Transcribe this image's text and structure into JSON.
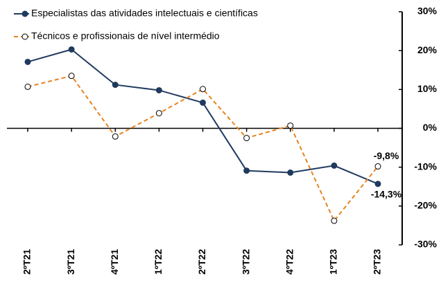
{
  "chart_data": {
    "type": "line",
    "categories": [
      "2ºT21",
      "3ºT21",
      "4ºT21",
      "1ºT22",
      "2ºT22",
      "3ºT22",
      "4ºT22",
      "1ºT23",
      "2ºT23"
    ],
    "series": [
      {
        "name": "Especialistas das atividades intelectuais e científicas",
        "color": "#1f3a5f",
        "dashed": false,
        "marker_fill": "#1f3a5f",
        "values": [
          17.1,
          20.3,
          11.2,
          9.8,
          6.6,
          -10.9,
          -11.4,
          -9.6,
          -14.3
        ],
        "value_labels": [
          null,
          null,
          null,
          null,
          null,
          null,
          null,
          null,
          "-14,3%"
        ]
      },
      {
        "name": "Técnicos e profissionais de nível intermédio",
        "color": "#e8821e",
        "dashed": true,
        "marker_fill": "#ffffff",
        "values": [
          10.7,
          13.5,
          -2.1,
          3.9,
          10.1,
          -2.5,
          0.7,
          -23.8,
          -9.8
        ],
        "value_labels": [
          null,
          null,
          null,
          null,
          null,
          null,
          null,
          null,
          "-9,8%"
        ]
      }
    ],
    "ylim": [
      -30,
      30
    ],
    "yticks": [
      {
        "value": 30,
        "label": "30%"
      },
      {
        "value": 20,
        "label": "20%"
      },
      {
        "value": 10,
        "label": "10%"
      },
      {
        "value": 0,
        "label": "0%"
      },
      {
        "value": -10,
        "label": "-10%"
      },
      {
        "value": -20,
        "label": "-20%"
      },
      {
        "value": -30,
        "label": "-30%"
      }
    ],
    "grid": false
  }
}
